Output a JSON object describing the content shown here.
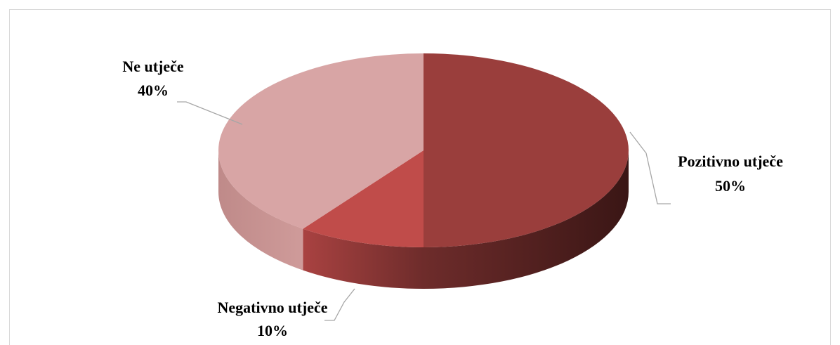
{
  "chart_data": {
    "type": "pie",
    "title": "",
    "slices": [
      {
        "label": "Pozitivno utječe",
        "value": 50,
        "value_label": "50%",
        "color": "#9a3e3c"
      },
      {
        "label": "Negativno utječe",
        "value": 10,
        "value_label": "10%",
        "color": "#c04c4a"
      },
      {
        "label": "Ne utječe",
        "value": 40,
        "value_label": "40%",
        "color": "#d8a5a5"
      }
    ],
    "style": "3d",
    "legend": "none"
  }
}
